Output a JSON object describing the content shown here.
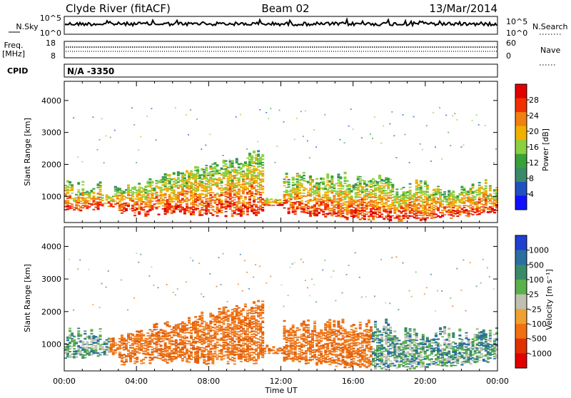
{
  "header": {
    "station": "Clyde River (fitACF)",
    "beam": "Beam 02",
    "date": "13/Mar/2014"
  },
  "nsky_panel": {
    "left_label": "N.Sky",
    "left_ticks": [
      "10^5",
      "10^0"
    ],
    "right_ticks": [
      "10^5",
      "10^0"
    ],
    "right_label": "N.Search"
  },
  "freq_panel": {
    "label_line1": "Freq.",
    "label_line2": "[MHz]",
    "left_ticks": [
      "18",
      "8"
    ],
    "right_ticks": [
      "60",
      "0"
    ],
    "right_label": "Nave"
  },
  "cpid": {
    "label": "CPID",
    "value": "N/A -3350"
  },
  "x_axis": {
    "ticks": [
      "00:00",
      "04:00",
      "08:00",
      "12:00",
      "16:00",
      "20:00",
      "00:00"
    ],
    "label": "Time UT"
  },
  "chart_data": [
    {
      "type": "heatmap",
      "name": "power",
      "ylabel": "Slant Range [km]",
      "y_ticks": [
        "1000",
        "2000",
        "3000",
        "4000"
      ],
      "ylim": [
        180,
        4600
      ],
      "xlim_hours": [
        0,
        24
      ],
      "colorbar_label": "Power [dB]",
      "colorbar_ticks": [
        "4",
        "8",
        "12",
        "16",
        "20",
        "24",
        "28"
      ],
      "colorbar_colors": [
        "#1010ff",
        "#2050c0",
        "#3a8a6a",
        "#3aa03a",
        "#8ad040",
        "#f0b000",
        "#f08010",
        "#f03000",
        "#e00000"
      ]
    },
    {
      "type": "heatmap",
      "name": "velocity",
      "ylabel": "Slant Range [km]",
      "y_ticks": [
        "1000",
        "2000",
        "3000",
        "4000"
      ],
      "ylim": [
        180,
        4600
      ],
      "xlim_hours": [
        0,
        24
      ],
      "colorbar_label": "Velocity [m s⁻¹]",
      "colorbar_ticks": [
        "1000",
        "500",
        "100",
        "25",
        "-25",
        "-100",
        "-500",
        "-1000"
      ],
      "colorbar_colors": [
        "#2040d0",
        "#2a6fa0",
        "#3a8a6a",
        "#5ab04a",
        "#c0c0b0",
        "#f0a030",
        "#f07010",
        "#e03000",
        "#e00000"
      ]
    }
  ]
}
